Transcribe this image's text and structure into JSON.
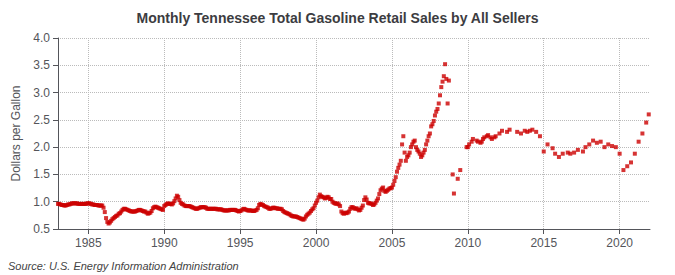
{
  "chart_data": {
    "type": "scatter",
    "title": "Monthly Tennessee Total Gasoline Retail Sales by All Sellers",
    "ylabel": "Dollars per Gallon",
    "annotation": "Source: U.S. Energy Information Administration",
    "color": "#cc0000",
    "marker": "square",
    "grid": true,
    "xlim": [
      1983,
      2022
    ],
    "xticks": [
      1985,
      1990,
      1995,
      2000,
      2005,
      2010,
      2015,
      2020
    ],
    "ylim": [
      0.5,
      4.0
    ],
    "yticks": [
      0.5,
      {
        "value": 1.0,
        "label": "1.0"
      },
      1.5,
      {
        "value": 2.0,
        "label": "2.0"
      },
      2.5,
      {
        "value": 3.0,
        "label": "3.0"
      },
      3.5,
      {
        "value": 4.0,
        "label": "4.0"
      }
    ],
    "x": [
      1983.0,
      1983.083,
      1983.167,
      1983.25,
      1983.333,
      1983.417,
      1983.5,
      1983.583,
      1983.667,
      1983.75,
      1983.833,
      1983.917,
      1984.0,
      1984.083,
      1984.167,
      1984.25,
      1984.333,
      1984.417,
      1984.5,
      1984.583,
      1984.667,
      1984.75,
      1984.833,
      1984.917,
      1985.0,
      1985.083,
      1985.167,
      1985.25,
      1985.333,
      1985.417,
      1985.5,
      1985.583,
      1985.667,
      1985.75,
      1985.833,
      1985.917,
      1986.0,
      1986.083,
      1986.167,
      1986.25,
      1986.333,
      1986.417,
      1986.5,
      1986.583,
      1986.667,
      1986.75,
      1986.833,
      1986.917,
      1987.0,
      1987.083,
      1987.167,
      1987.25,
      1987.333,
      1987.417,
      1987.5,
      1987.583,
      1987.667,
      1987.75,
      1987.833,
      1987.917,
      1988.0,
      1988.083,
      1988.167,
      1988.25,
      1988.333,
      1988.417,
      1988.5,
      1988.583,
      1988.667,
      1988.75,
      1988.833,
      1988.917,
      1989.0,
      1989.083,
      1989.167,
      1989.25,
      1989.333,
      1989.417,
      1989.5,
      1989.583,
      1989.667,
      1989.75,
      1989.833,
      1989.917,
      1990.0,
      1990.083,
      1990.167,
      1990.25,
      1990.333,
      1990.417,
      1990.5,
      1990.583,
      1990.667,
      1990.75,
      1990.833,
      1990.917,
      1991.0,
      1991.083,
      1991.167,
      1991.25,
      1991.333,
      1991.417,
      1991.5,
      1991.583,
      1991.667,
      1991.75,
      1991.833,
      1991.917,
      1992.0,
      1992.083,
      1992.167,
      1992.25,
      1992.333,
      1992.417,
      1992.5,
      1992.583,
      1992.667,
      1992.75,
      1992.833,
      1992.917,
      1993.0,
      1993.083,
      1993.167,
      1993.25,
      1993.333,
      1993.417,
      1993.5,
      1993.583,
      1993.667,
      1993.75,
      1993.833,
      1993.917,
      1994.0,
      1994.083,
      1994.167,
      1994.25,
      1994.333,
      1994.417,
      1994.5,
      1994.583,
      1994.667,
      1994.75,
      1994.833,
      1994.917,
      1995.0,
      1995.083,
      1995.167,
      1995.25,
      1995.333,
      1995.417,
      1995.5,
      1995.583,
      1995.667,
      1995.75,
      1995.833,
      1995.917,
      1996.0,
      1996.083,
      1996.167,
      1996.25,
      1996.333,
      1996.417,
      1996.5,
      1996.583,
      1996.667,
      1996.75,
      1996.833,
      1996.917,
      1997.0,
      1997.083,
      1997.167,
      1997.25,
      1997.333,
      1997.417,
      1997.5,
      1997.583,
      1997.667,
      1997.75,
      1997.833,
      1997.917,
      1998.0,
      1998.083,
      1998.167,
      1998.25,
      1998.333,
      1998.417,
      1998.5,
      1998.583,
      1998.667,
      1998.75,
      1998.833,
      1998.917,
      1999.0,
      1999.083,
      1999.167,
      1999.25,
      1999.333,
      1999.417,
      1999.5,
      1999.583,
      1999.667,
      1999.75,
      1999.833,
      1999.917,
      2000.0,
      2000.083,
      2000.167,
      2000.25,
      2000.333,
      2000.417,
      2000.5,
      2000.583,
      2000.667,
      2000.75,
      2000.833,
      2000.917,
      2001.0,
      2001.083,
      2001.167,
      2001.25,
      2001.333,
      2001.417,
      2001.5,
      2001.583,
      2001.667,
      2001.75,
      2001.833,
      2001.917,
      2002.0,
      2002.083,
      2002.167,
      2002.25,
      2002.333,
      2002.417,
      2002.5,
      2002.583,
      2002.667,
      2002.75,
      2002.833,
      2002.917,
      2003.0,
      2003.083,
      2003.167,
      2003.25,
      2003.333,
      2003.417,
      2003.5,
      2003.583,
      2003.667,
      2003.75,
      2003.833,
      2003.917,
      2004.0,
      2004.083,
      2004.167,
      2004.25,
      2004.333,
      2004.417,
      2004.5,
      2004.583,
      2004.667,
      2004.75,
      2004.833,
      2004.917,
      2005.0,
      2005.083,
      2005.167,
      2005.25,
      2005.333,
      2005.417,
      2005.5,
      2005.583,
      2005.667,
      2005.75,
      2005.833,
      2005.917,
      2006.0,
      2006.083,
      2006.167,
      2006.25,
      2006.333,
      2006.417,
      2006.5,
      2006.583,
      2006.667,
      2006.75,
      2006.833,
      2006.917,
      2007.0,
      2007.083,
      2007.167,
      2007.25,
      2007.333,
      2007.417,
      2007.5,
      2007.583,
      2007.667,
      2007.75,
      2007.833,
      2007.917,
      2008.0,
      2008.083,
      2008.167,
      2008.25,
      2008.333,
      2008.417,
      2008.5,
      2008.583,
      2008.667,
      2008.75,
      2009.0,
      2009.083,
      2009.333,
      2009.5,
      2009.917,
      2010.0,
      2010.083,
      2010.25,
      2010.333,
      2010.583,
      2010.667,
      2010.833,
      2010.917,
      2011.0,
      2011.083,
      2011.25,
      2011.333,
      2011.5,
      2011.583,
      2011.75,
      2011.833,
      2012.083,
      2012.25,
      2012.583,
      2012.75,
      2013.25,
      2013.5,
      2013.75,
      2013.917,
      2014.083,
      2014.25,
      2014.5,
      2014.75,
      2015.0,
      2015.25,
      2015.583,
      2015.75,
      2016.0,
      2016.25,
      2016.583,
      2016.75,
      2017.0,
      2017.25,
      2017.583,
      2017.75,
      2018.0,
      2018.25,
      2018.5,
      2018.75,
      2019.0,
      2019.25,
      2019.5,
      2019.75,
      2020.0,
      2020.25,
      2020.5,
      2020.75,
      2021.0,
      2021.25,
      2021.5,
      2021.75,
      2021.917
    ],
    "values": [
      0.96,
      0.96,
      0.95,
      0.94,
      0.94,
      0.93,
      0.93,
      0.94,
      0.95,
      0.95,
      0.96,
      0.97,
      0.97,
      0.97,
      0.97,
      0.97,
      0.96,
      0.96,
      0.96,
      0.96,
      0.96,
      0.96,
      0.96,
      0.97,
      0.97,
      0.97,
      0.96,
      0.95,
      0.95,
      0.94,
      0.94,
      0.94,
      0.93,
      0.93,
      0.93,
      0.93,
      0.89,
      0.81,
      0.7,
      0.63,
      0.6,
      0.62,
      0.65,
      0.68,
      0.7,
      0.72,
      0.74,
      0.75,
      0.78,
      0.79,
      0.82,
      0.85,
      0.87,
      0.87,
      0.86,
      0.85,
      0.84,
      0.83,
      0.82,
      0.82,
      0.82,
      0.82,
      0.83,
      0.84,
      0.85,
      0.85,
      0.84,
      0.83,
      0.82,
      0.82,
      0.8,
      0.78,
      0.79,
      0.8,
      0.83,
      0.88,
      0.9,
      0.91,
      0.9,
      0.89,
      0.88,
      0.87,
      0.86,
      0.85,
      0.92,
      0.94,
      0.96,
      0.97,
      0.96,
      0.96,
      0.95,
      0.97,
      1.01,
      1.06,
      1.11,
      1.09,
      1.03,
      0.98,
      0.96,
      0.95,
      0.93,
      0.92,
      0.92,
      0.92,
      0.92,
      0.91,
      0.9,
      0.89,
      0.88,
      0.87,
      0.87,
      0.88,
      0.89,
      0.9,
      0.9,
      0.9,
      0.9,
      0.89,
      0.87,
      0.87,
      0.87,
      0.87,
      0.87,
      0.87,
      0.87,
      0.87,
      0.86,
      0.86,
      0.86,
      0.86,
      0.85,
      0.84,
      0.84,
      0.84,
      0.84,
      0.84,
      0.85,
      0.85,
      0.85,
      0.85,
      0.85,
      0.84,
      0.83,
      0.82,
      0.83,
      0.84,
      0.86,
      0.87,
      0.86,
      0.85,
      0.84,
      0.84,
      0.84,
      0.84,
      0.83,
      0.83,
      0.84,
      0.85,
      0.88,
      0.94,
      0.96,
      0.95,
      0.94,
      0.92,
      0.91,
      0.9,
      0.89,
      0.87,
      0.87,
      0.88,
      0.89,
      0.89,
      0.88,
      0.88,
      0.87,
      0.87,
      0.87,
      0.86,
      0.83,
      0.81,
      0.8,
      0.79,
      0.78,
      0.77,
      0.75,
      0.74,
      0.73,
      0.73,
      0.73,
      0.72,
      0.71,
      0.7,
      0.69,
      0.68,
      0.67,
      0.69,
      0.73,
      0.76,
      0.78,
      0.8,
      0.83,
      0.86,
      0.88,
      0.93,
      0.98,
      1.02,
      1.08,
      1.13,
      1.1,
      1.09,
      1.08,
      1.06,
      1.07,
      1.09,
      1.08,
      1.05,
      1.05,
      1.0,
      0.98,
      0.97,
      0.96,
      0.97,
      0.95,
      0.92,
      0.82,
      0.79,
      0.78,
      0.8,
      0.79,
      0.8,
      0.82,
      0.87,
      0.9,
      0.9,
      0.88,
      0.87,
      0.88,
      0.86,
      0.84,
      0.85,
      0.89,
      0.93,
      1.03,
      1.08,
      1.04,
      0.98,
      0.97,
      0.97,
      0.96,
      0.94,
      0.95,
      0.98,
      1.02,
      1.06,
      1.14,
      1.21,
      1.24,
      1.26,
      1.2,
      1.18,
      1.2,
      1.22,
      1.24,
      1.25,
      1.26,
      1.31,
      1.38,
      1.45,
      1.55,
      1.62,
      1.68,
      1.75,
      2.05,
      2.2,
      1.9,
      1.75,
      1.82,
      1.85,
      1.9,
      2.0,
      2.05,
      2.1,
      2.12,
      2.0,
      1.95,
      1.92,
      1.88,
      1.82,
      1.85,
      1.9,
      1.95,
      2.05,
      2.12,
      2.2,
      2.25,
      2.38,
      2.42,
      2.48,
      2.58,
      2.65,
      2.7,
      2.8,
      2.95,
      3.1,
      3.2,
      3.3,
      3.52,
      3.25,
      2.8,
      3.22,
      1.5,
      1.15,
      1.42,
      1.58,
      2.0,
      2.0,
      2.05,
      2.1,
      2.15,
      2.12,
      2.1,
      2.08,
      2.1,
      2.15,
      2.18,
      2.2,
      2.22,
      2.18,
      2.15,
      2.18,
      2.2,
      2.25,
      2.3,
      2.28,
      2.32,
      2.28,
      2.25,
      2.3,
      2.28,
      2.3,
      2.32,
      2.28,
      2.2,
      1.92,
      2.05,
      1.98,
      1.88,
      1.82,
      1.88,
      1.9,
      1.88,
      1.9,
      1.95,
      1.92,
      2.0,
      2.05,
      2.12,
      2.08,
      2.1,
      2.0,
      2.05,
      2.02,
      2.0,
      1.88,
      1.58,
      1.65,
      1.72,
      1.88,
      2.1,
      2.25,
      2.45,
      2.6
    ]
  }
}
